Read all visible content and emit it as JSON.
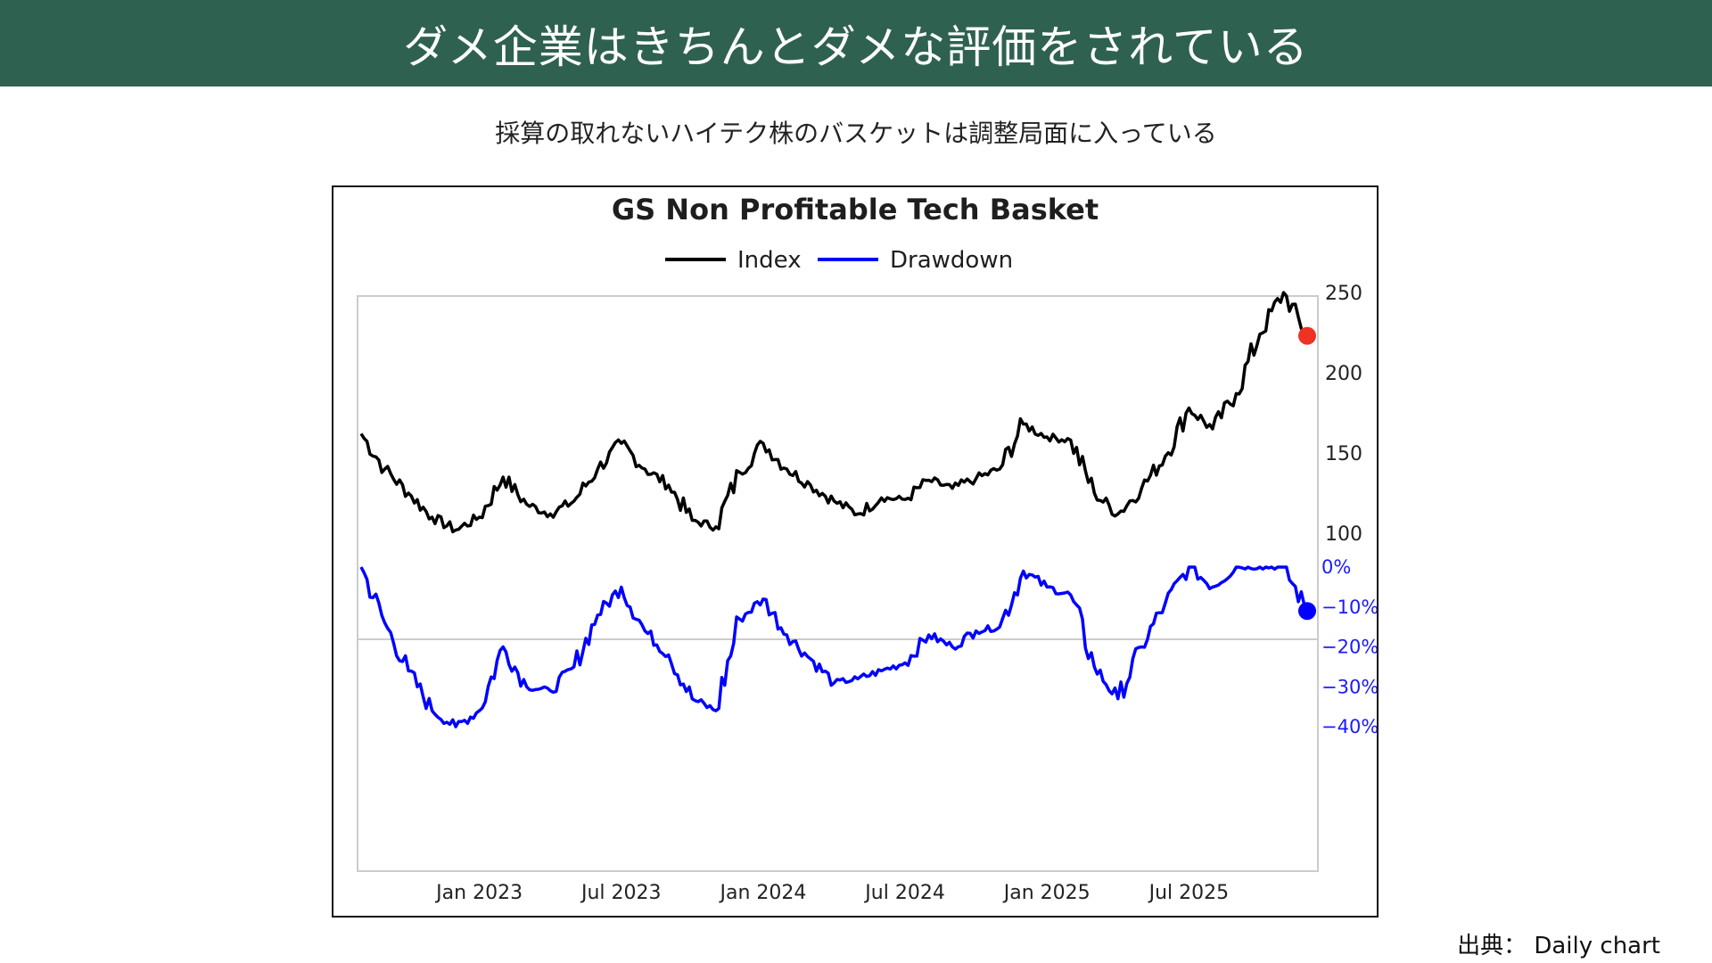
{
  "page": {
    "title": "ダメ企業はきちんとダメな評価をされている",
    "subtitle": "採算の取れないハイテク株のバスケットは調整局面に入っている",
    "source": "出典： Daily chart"
  },
  "colors": {
    "header_bg": "#2f6151",
    "index_line": "#000000",
    "drawdown_line": "#0000ff",
    "last_index_marker": "#ee3322",
    "last_drawdown_marker": "#0000ff",
    "panel_border": "#cccccc"
  },
  "chart_data": [
    {
      "type": "line",
      "title": "GS Non Profitable Tech Basket",
      "legend": [
        {
          "label": "Index",
          "color": "#000000"
        },
        {
          "label": "Drawdown",
          "color": "#0000ff"
        }
      ],
      "x_tick_labels": [
        "Jan 2023",
        "Jul 2023",
        "Jan 2024",
        "Jul 2024",
        "Jan 2025",
        "Jul 2025"
      ],
      "x_tick_dates": [
        "2023-01",
        "2023-07",
        "2024-01",
        "2024-07",
        "2025-01",
        "2025-07"
      ],
      "x_range": [
        "2022-08",
        "2025-12"
      ],
      "panels": [
        {
          "name": "Index",
          "ylim": [
            90,
            260
          ],
          "y_ticks": [
            100,
            150,
            200,
            250
          ],
          "y_tick_labels": [
            "100",
            "150",
            "200",
            "250"
          ],
          "series": [
            {
              "name": "Index",
              "x": [
                "2022-08",
                "2022-09",
                "2022-10",
                "2022-11",
                "2022-12",
                "2023-01",
                "2023-02",
                "2023-03",
                "2023-04",
                "2023-05",
                "2023-06",
                "2023-07",
                "2023-08",
                "2023-09",
                "2023-10",
                "2023-11",
                "2023-12",
                "2024-01",
                "2024-02",
                "2024-03",
                "2024-04",
                "2024-05",
                "2024-06",
                "2024-07",
                "2024-08",
                "2024-09",
                "2024-10",
                "2024-11",
                "2024-12",
                "2025-01",
                "2025-02",
                "2025-03",
                "2025-04",
                "2025-05",
                "2025-06",
                "2025-07",
                "2025-08",
                "2025-09",
                "2025-10",
                "2025-11",
                "2025-12"
              ],
              "values": [
                162,
                140,
                125,
                110,
                102,
                110,
                135,
                118,
                112,
                120,
                140,
                156,
                140,
                130,
                108,
                104,
                138,
                156,
                140,
                130,
                120,
                112,
                122,
                121,
                133,
                128,
                134,
                140,
                168,
                160,
                158,
                125,
                112,
                128,
                148,
                178,
                165,
                187,
                224,
                250,
                223
              ]
            }
          ],
          "last_value": 223
        },
        {
          "name": "Drawdown",
          "ylim": [
            -0.45,
            0.02
          ],
          "y_ticks": [
            0,
            -0.1,
            -0.2,
            -0.3,
            -0.4
          ],
          "y_tick_labels": [
            "0%",
            "−10%",
            "−20%",
            "−30%",
            "−40%"
          ],
          "series": [
            {
              "name": "Drawdown",
              "x": [
                "2022-08",
                "2022-09",
                "2022-10",
                "2022-11",
                "2022-12",
                "2023-01",
                "2023-02",
                "2023-03",
                "2023-04",
                "2023-05",
                "2023-06",
                "2023-07",
                "2023-08",
                "2023-09",
                "2023-10",
                "2023-11",
                "2023-12",
                "2024-01",
                "2024-02",
                "2024-03",
                "2024-04",
                "2024-05",
                "2024-06",
                "2024-07",
                "2024-08",
                "2024-09",
                "2024-10",
                "2024-11",
                "2024-12",
                "2025-01",
                "2025-02",
                "2025-03",
                "2025-04",
                "2025-05",
                "2025-06",
                "2025-07",
                "2025-08",
                "2025-09",
                "2025-10",
                "2025-11",
                "2025-12"
              ],
              "values": [
                0.0,
                -0.14,
                -0.26,
                -0.36,
                -0.4,
                -0.36,
                -0.2,
                -0.3,
                -0.31,
                -0.25,
                -0.12,
                -0.05,
                -0.16,
                -0.22,
                -0.33,
                -0.36,
                -0.13,
                -0.08,
                -0.17,
                -0.23,
                -0.29,
                -0.28,
                -0.26,
                -0.24,
                -0.17,
                -0.2,
                -0.16,
                -0.15,
                -0.01,
                -0.05,
                -0.07,
                -0.25,
                -0.33,
                -0.2,
                -0.09,
                0.0,
                -0.05,
                0.0,
                0.0,
                0.0,
                -0.11
              ]
            }
          ],
          "last_value": -0.11
        }
      ]
    }
  ]
}
